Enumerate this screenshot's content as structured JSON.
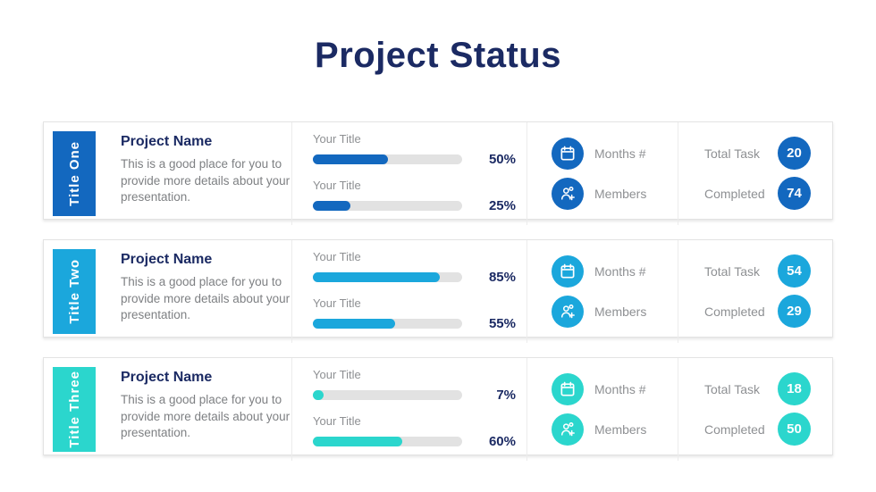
{
  "slide": {
    "title": "Project Status"
  },
  "colors": {
    "heading_navy": "#1B2A63",
    "label_gray": "#8E9093",
    "description_gray": "#7E8083",
    "bar_track_gray": "#E2E2E2",
    "row_accents": [
      "#1368BF",
      "#1BA7DC",
      "#2BD6CD"
    ]
  },
  "rows": [
    {
      "tab_label": "Title One",
      "accent": "#1368BF",
      "project_name": "Project Name",
      "description": "This is a good place for you to provide more details about your presentation.",
      "bars": [
        {
          "label": "Your Title",
          "percent": 50,
          "percent_label": "50%"
        },
        {
          "label": "Your Title",
          "percent": 25,
          "percent_label": "25%"
        }
      ],
      "months": {
        "icon": "calendar-icon",
        "label": "Months #"
      },
      "members": {
        "icon": "person-add-icon",
        "label": "Members"
      },
      "stats": [
        {
          "label": "Total Task",
          "value": "20"
        },
        {
          "label": "Completed",
          "value": "74"
        }
      ]
    },
    {
      "tab_label": "Title Two",
      "accent": "#1BA7DC",
      "project_name": "Project Name",
      "description": "This is a good place for you to provide more details about your presentation.",
      "bars": [
        {
          "label": "Your Title",
          "percent": 85,
          "percent_label": "85%"
        },
        {
          "label": "Your Title",
          "percent": 55,
          "percent_label": "55%"
        }
      ],
      "months": {
        "icon": "calendar-icon",
        "label": "Months #"
      },
      "members": {
        "icon": "person-add-icon",
        "label": "Members"
      },
      "stats": [
        {
          "label": "Total Task",
          "value": "54"
        },
        {
          "label": "Completed",
          "value": "29"
        }
      ]
    },
    {
      "tab_label": "Title Three",
      "accent": "#2BD6CD",
      "project_name": "Project Name",
      "description": "This is a good place for you to provide more details about your presentation.",
      "bars": [
        {
          "label": "Your Title",
          "percent": 7,
          "percent_label": "7%"
        },
        {
          "label": "Your Title",
          "percent": 60,
          "percent_label": "60%"
        }
      ],
      "months": {
        "icon": "calendar-icon",
        "label": "Months #"
      },
      "members": {
        "icon": "person-add-icon",
        "label": "Members"
      },
      "stats": [
        {
          "label": "Total Task",
          "value": "18"
        },
        {
          "label": "Completed",
          "value": "50"
        }
      ]
    }
  ]
}
